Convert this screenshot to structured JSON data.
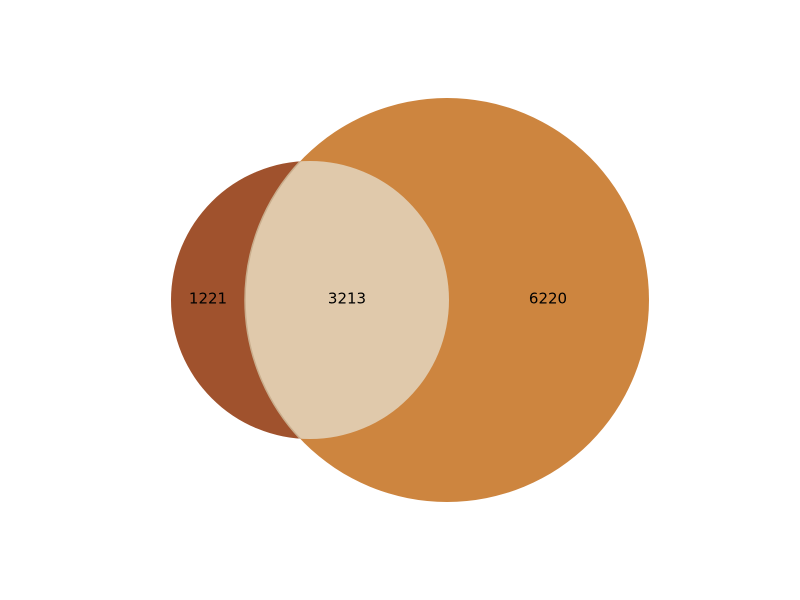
{
  "chart_data": {
    "type": "venn",
    "sets": [
      {
        "id": "A",
        "color": "#a0522d"
      },
      {
        "id": "B",
        "color": "#cd853f"
      }
    ],
    "regions": [
      {
        "sets": [
          "A"
        ],
        "value": "1221"
      },
      {
        "sets": [
          "A",
          "B"
        ],
        "value": "3213"
      },
      {
        "sets": [
          "B"
        ],
        "value": "6220"
      }
    ],
    "intersection_color": "#e0c9ab"
  }
}
